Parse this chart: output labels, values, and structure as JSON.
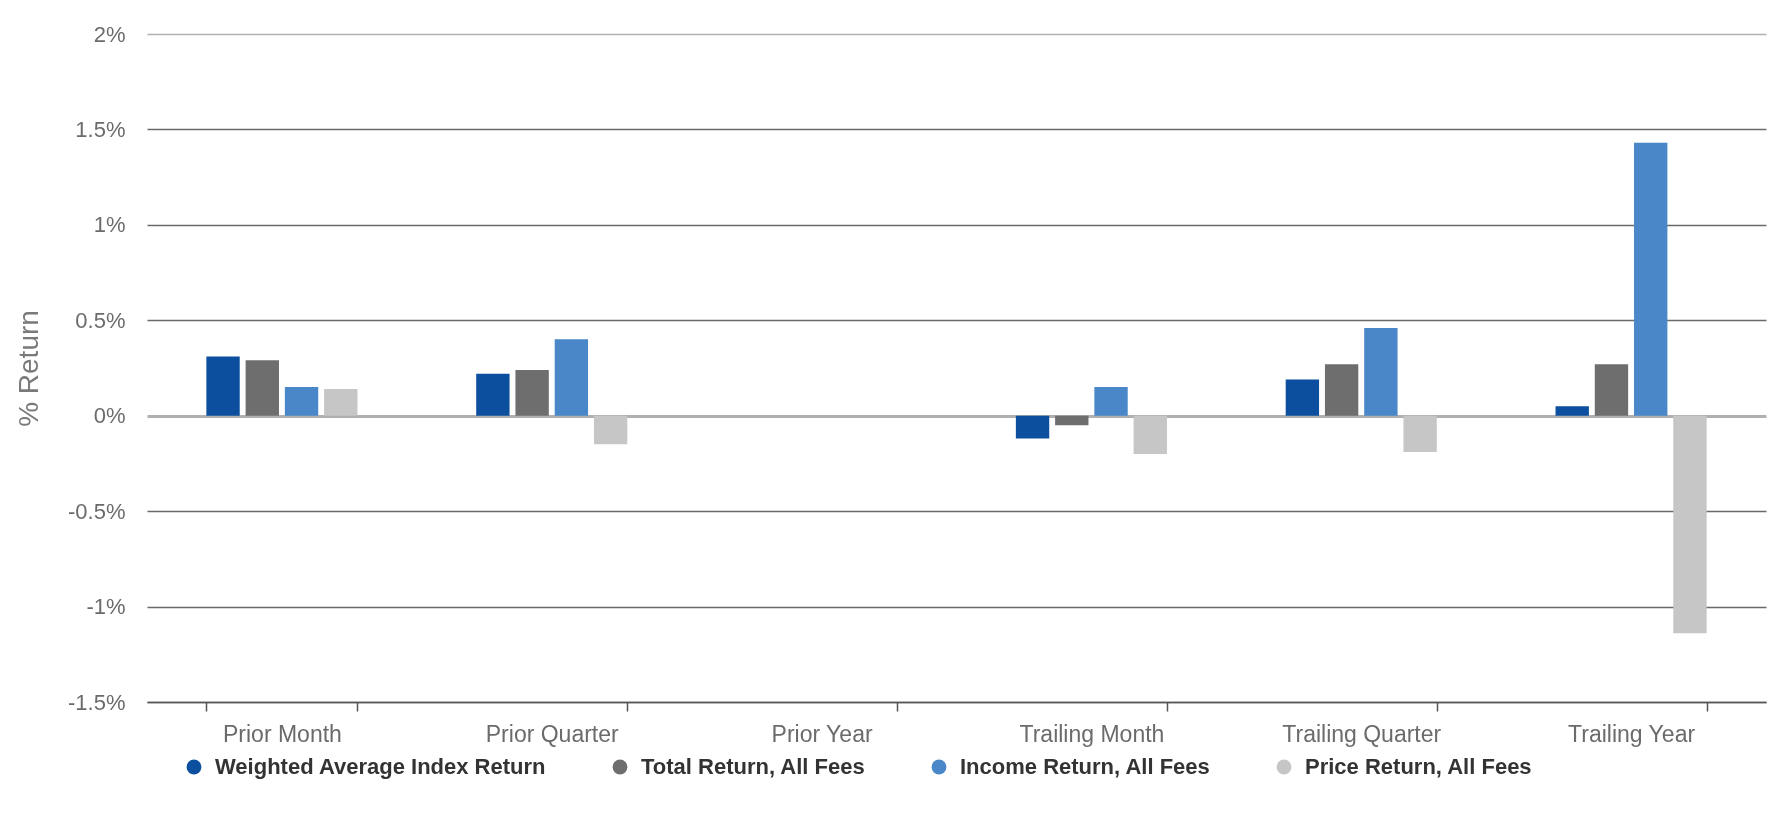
{
  "chart_data": {
    "type": "bar",
    "ylabel": "% Return",
    "categories": [
      "Prior Month",
      "Prior Quarter",
      "Prior Year",
      "Trailing Month",
      "Trailing Quarter",
      "Trailing Year"
    ],
    "series": [
      {
        "name": "Weighted Average Index Return",
        "color": "#0b4f9e",
        "values": [
          0.31,
          0.22,
          null,
          -0.12,
          0.19,
          0.05
        ]
      },
      {
        "name": "Total Return, All Fees",
        "color": "#6e6e6e",
        "values": [
          0.29,
          0.24,
          null,
          -0.05,
          0.27,
          0.27
        ]
      },
      {
        "name": "Income Return, All Fees",
        "color": "#4a87c9",
        "values": [
          0.15,
          0.4,
          null,
          0.15,
          0.46,
          1.43
        ]
      },
      {
        "name": "Price Return, All Fees",
        "color": "#c6c6c6",
        "values": [
          0.14,
          -0.15,
          null,
          -0.2,
          -0.19,
          -1.14
        ]
      }
    ],
    "ylim": [
      -1.5,
      2
    ],
    "yticks": [
      {
        "value": -1.5,
        "label": "-1.5%"
      },
      {
        "value": -1,
        "label": "-1%"
      },
      {
        "value": -0.5,
        "label": "-0.5%"
      },
      {
        "value": 0,
        "label": "0%"
      },
      {
        "value": 0.5,
        "label": "0.5%"
      },
      {
        "value": 1,
        "label": "1%"
      },
      {
        "value": 1.5,
        "label": "1.5%"
      },
      {
        "value": 2,
        "label": "2%"
      }
    ],
    "grid": "y",
    "legend": "bottom"
  }
}
